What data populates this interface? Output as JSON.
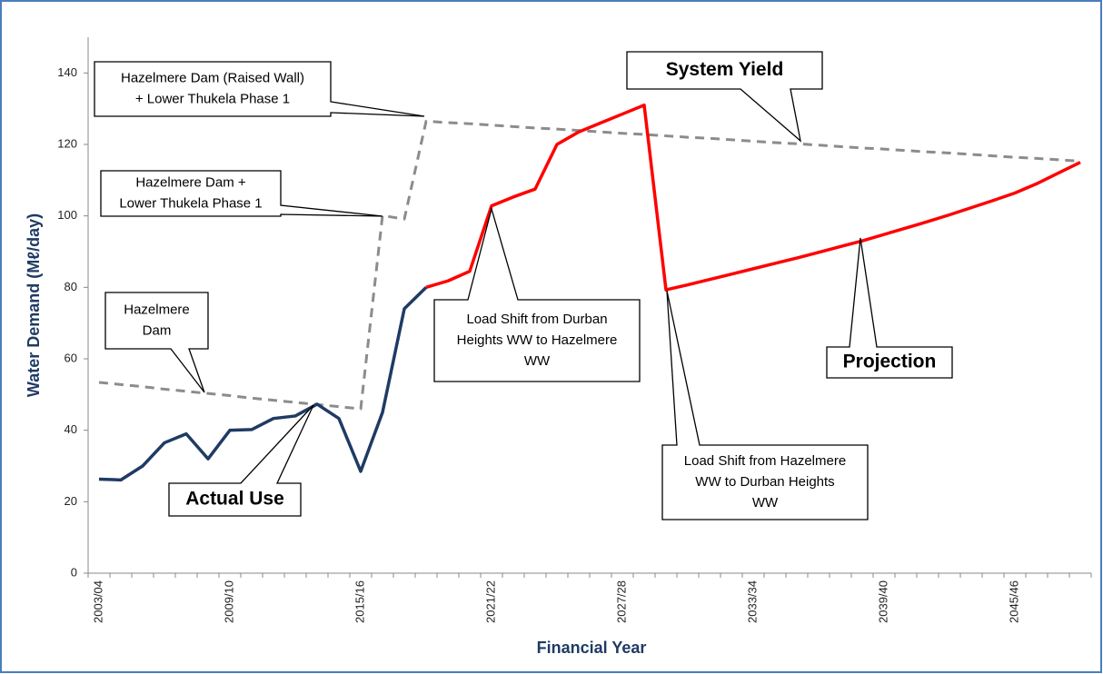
{
  "chart_data": {
    "type": "line",
    "categories": [
      "2003/04",
      null,
      null,
      null,
      null,
      null,
      "2009/10",
      null,
      null,
      null,
      null,
      null,
      "2015/16",
      null,
      null,
      null,
      null,
      null,
      "2021/22",
      null,
      null,
      null,
      null,
      null,
      "2027/28",
      null,
      null,
      null,
      null,
      null,
      "2033/34",
      null,
      null,
      null,
      null,
      null,
      "2039/40",
      null,
      null,
      null,
      null,
      null,
      "2045/46",
      null,
      null,
      null
    ],
    "series": [
      {
        "name": "Actual Use",
        "color": "#1f3b64",
        "dash": false,
        "values": [
          26.3,
          26.1,
          30,
          36.5,
          39,
          32,
          40,
          40.2,
          43.3,
          44,
          47.3,
          43.3,
          28.5,
          45,
          74,
          80,
          null,
          null,
          null,
          null,
          null,
          null,
          null,
          null,
          null,
          null,
          null,
          null,
          null,
          null,
          null,
          null,
          null,
          null,
          null,
          null,
          null,
          null,
          null,
          null,
          null,
          null,
          null,
          null,
          null,
          null
        ]
      },
      {
        "name": "Projection",
        "color": "#ff0000",
        "dash": false,
        "values": [
          null,
          null,
          null,
          null,
          null,
          null,
          null,
          null,
          null,
          null,
          null,
          null,
          null,
          null,
          null,
          80,
          81.8,
          84.5,
          102.8,
          105.3,
          107.5,
          120,
          123.5,
          126,
          128.5,
          131,
          79.3,
          80.7,
          82.2,
          83.7,
          85.2,
          86.7,
          88.2,
          89.8,
          91.4,
          93,
          94.8,
          96.6,
          98.4,
          100.3,
          102.3,
          104.3,
          106.4,
          109,
          112,
          115
        ]
      },
      {
        "name": "System Yield",
        "color": "#8c8c8c",
        "dash": true,
        "values": [
          53.4,
          52.8,
          52.2,
          51.5,
          50.9,
          50.3,
          49.7,
          49,
          48.4,
          47.8,
          47.2,
          46.6,
          46,
          100.1,
          99.1,
          126.5,
          126.1,
          125.8,
          125.4,
          125,
          124.6,
          124.3,
          123.9,
          123.5,
          123.1,
          122.8,
          122.4,
          122,
          121.7,
          121.3,
          120.9,
          120.5,
          120.2,
          119.8,
          119.4,
          119,
          118.7,
          118.3,
          117.9,
          117.6,
          117.2,
          116.8,
          116.4,
          116.1,
          115.7,
          115.3
        ]
      }
    ],
    "y_label": "Water Demand (Mℓ/day)",
    "x_label": "Financial Year",
    "ylim": [
      0,
      150
    ],
    "yticks": [
      0,
      20,
      40,
      60,
      80,
      100,
      120,
      140
    ],
    "grid": false,
    "annotations": [
      {
        "lines": [
          "Hazelmere Dam (Raised Wall)",
          "+ Lower Thukela Phase 1"
        ]
      },
      {
        "lines": [
          "Hazelmere Dam +",
          "Lower Thukela Phase 1"
        ]
      },
      {
        "lines": [
          "Hazelmere",
          "Dam"
        ]
      },
      {
        "lines": [
          "Load Shift from Durban",
          "Heights WW to Hazelmere",
          "WW"
        ]
      },
      {
        "lines": [
          "Load Shift from Hazelmere",
          "WW to Durban Heights",
          "WW"
        ]
      }
    ]
  }
}
